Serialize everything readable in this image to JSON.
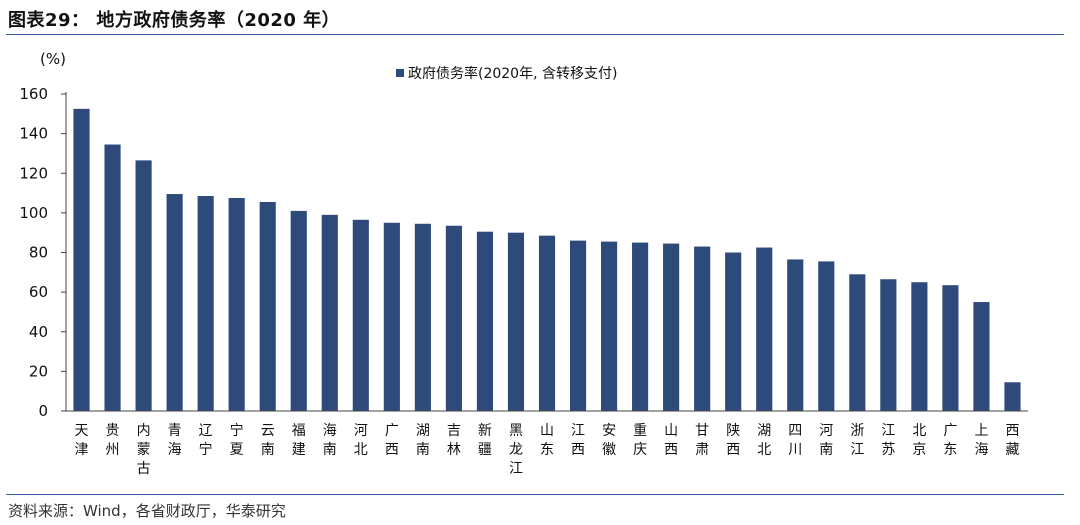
{
  "header": {
    "title": "图表29： 地方政府债务率（2020 年）"
  },
  "footer": {
    "source": "资料来源：Wind，各省财政厅，华泰研究"
  },
  "chart_data": {
    "type": "bar",
    "unit": "(%)",
    "legend": "政府债务率(2020年, 含转移支付)",
    "legend_position": "top-center",
    "color": "#2e4a7a",
    "grid": false,
    "ylim": [
      0,
      160
    ],
    "yticks": [
      "0",
      "20",
      "40",
      "60",
      "80",
      "100",
      "120",
      "140",
      "160"
    ],
    "categories": [
      "天津",
      "贵州",
      "内蒙古",
      "青海",
      "辽宁",
      "宁夏",
      "云南",
      "福建",
      "海南",
      "河北",
      "广西",
      "湖南",
      "吉林",
      "新疆",
      "黑龙江",
      "山东",
      "江西",
      "安徽",
      "重庆",
      "山西",
      "甘肃",
      "陕西",
      "湖北",
      "四川",
      "河南",
      "浙江",
      "江苏",
      "北京",
      "广东",
      "上海",
      "西藏"
    ],
    "values": [
      152.5,
      134.5,
      126.5,
      109.5,
      108.5,
      107.5,
      105.5,
      101,
      99,
      96.5,
      95,
      94.5,
      93.5,
      90.5,
      90,
      88.5,
      86,
      85.5,
      85,
      84.5,
      83,
      80,
      82.5,
      76.5,
      75.5,
      69,
      66.5,
      65,
      63.5,
      55,
      14.5
    ]
  }
}
